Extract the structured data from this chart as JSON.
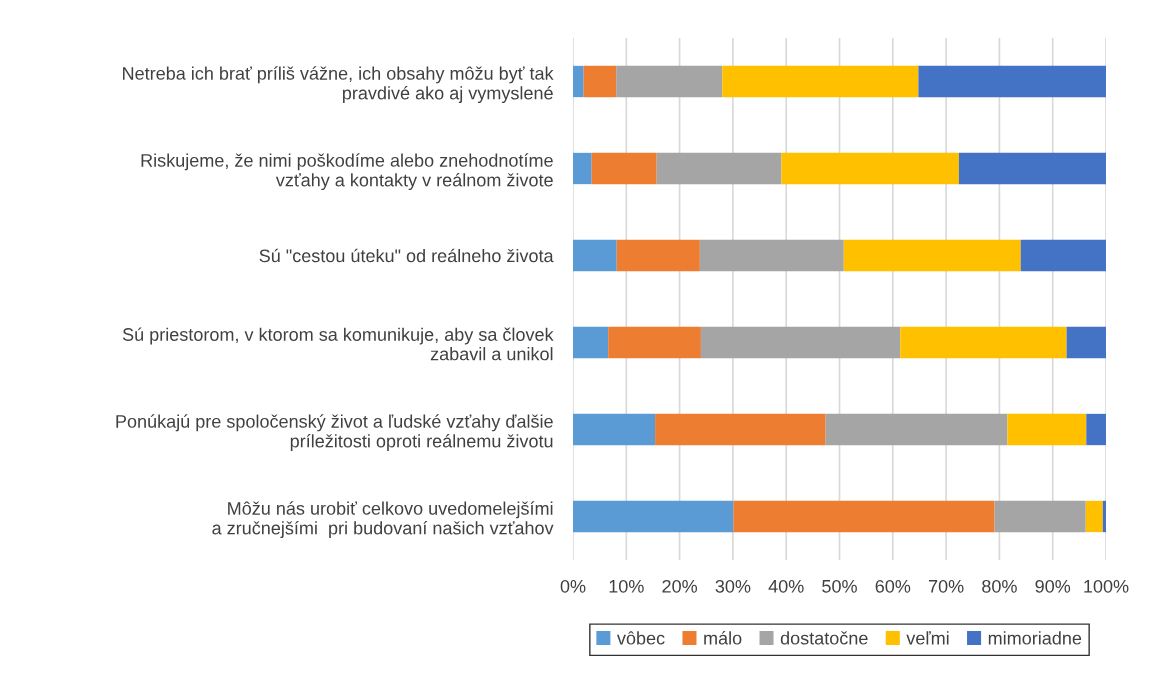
{
  "chart_data": {
    "type": "bar",
    "orientation": "horizontal",
    "stacked": true,
    "categories": [
      "Netreba ich brať príliš vážne, ich obsahy môžu byť tak\npravdivé ako aj vymyslené",
      "Riskujeme, že nimi poškodíme alebo znehodnotíme\nvzťahy a kontakty v reálnom živote",
      "Sú \"cestou úteku\" od reálneho života",
      "Sú priestorom, v ktorom sa komunikuje, aby sa človek\nzabavil a unikol",
      "Ponúkajú pre spoločenský život a ľudské vzťahy ďalšie\npríležitosti oproti reálnemu životu",
      "Môžu nás urobiť celkovo uvedomelejšími\na zručnejšími  pri budovaní našich vzťahov"
    ],
    "series": [
      {
        "name": "vôbec",
        "color": "#5b9bd5",
        "values": [
          2.0,
          3.5,
          8.2,
          6.6,
          15.4,
          30.1
        ]
      },
      {
        "name": "málo",
        "color": "#ed7d31",
        "values": [
          6.1,
          12.2,
          15.6,
          17.4,
          32.0,
          49.0
        ]
      },
      {
        "name": "dostatočne",
        "color": "#a5a5a5",
        "values": [
          19.9,
          23.4,
          27.0,
          37.4,
          34.1,
          17.1
        ]
      },
      {
        "name": "veľmi",
        "color": "#ffc000",
        "values": [
          36.8,
          33.3,
          33.2,
          31.2,
          14.8,
          3.2
        ]
      },
      {
        "name": "mimoriadne",
        "color": "#4472c4",
        "values": [
          35.2,
          27.6,
          16.0,
          7.4,
          3.7,
          0.6
        ]
      }
    ],
    "xlim": [
      0,
      100
    ],
    "xticks": [
      {
        "value": 0,
        "label": "0%"
      },
      {
        "value": 10,
        "label": "10%"
      },
      {
        "value": 20,
        "label": "20%"
      },
      {
        "value": 30,
        "label": "30%"
      },
      {
        "value": 40,
        "label": "40%"
      },
      {
        "value": 50,
        "label": "50%"
      },
      {
        "value": 60,
        "label": "60%"
      },
      {
        "value": 70,
        "label": "70%"
      },
      {
        "value": 80,
        "label": "80%"
      },
      {
        "value": 90,
        "label": "90%"
      },
      {
        "value": 100,
        "label": "100%"
      }
    ],
    "grid": "x",
    "legend": "bottom"
  }
}
